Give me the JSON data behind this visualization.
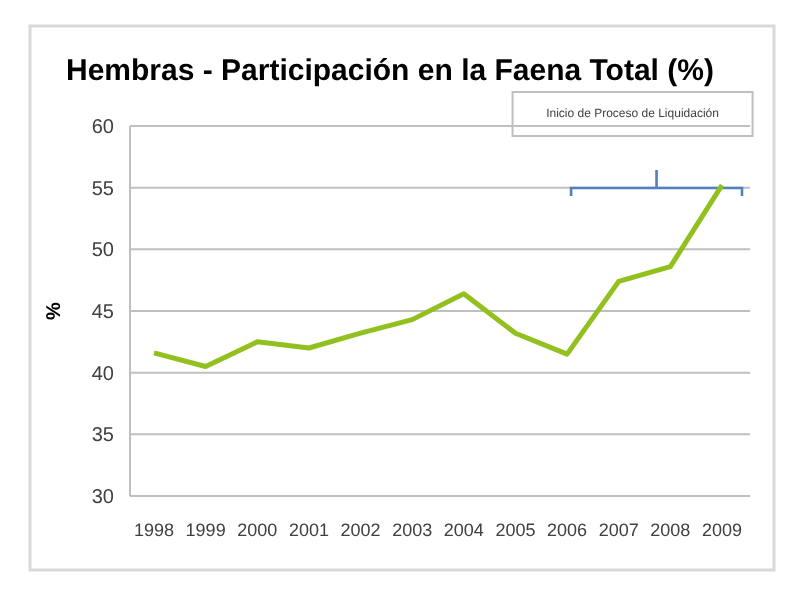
{
  "chart_data": {
    "type": "line",
    "title": "Hembras - Participación  en la Faena Total (%)",
    "ylabel": "%",
    "categories": [
      "1998",
      "1999",
      "2000",
      "2001",
      "2002",
      "2003",
      "2004",
      "2005",
      "2006",
      "2007",
      "2008",
      "2009"
    ],
    "series": [
      {
        "color": "#92c01f",
        "values": [
          41.6,
          40.5,
          42.5,
          42,
          43.2,
          44.3,
          46.4,
          43.2,
          41.5,
          47.4,
          48.6,
          55.2
        ]
      }
    ],
    "ylim": [
      30,
      60
    ],
    "yticks": [
      30,
      35,
      40,
      45,
      50,
      55,
      60
    ],
    "grid": "y",
    "marker": "none",
    "annotations": [
      "Inicio de  Proceso de Liquidación"
    ]
  }
}
